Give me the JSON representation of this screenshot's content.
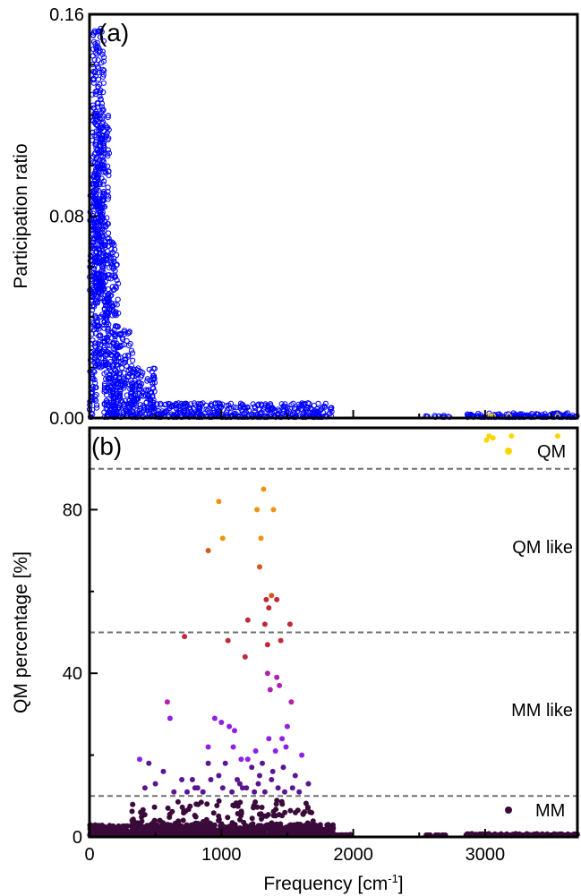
{
  "chart_data": [
    {
      "panel": "(a)",
      "type": "scatter",
      "marker": "open-circle",
      "ylabel": "Participation ratio",
      "xlim": [
        0,
        3700
      ],
      "ylim": [
        0,
        0.16
      ],
      "yticks": [
        "0.00",
        "0.08",
        "0.16"
      ],
      "series": [
        {
          "color": "#0000ff",
          "density": [
            {
              "x": [
                0,
                60
              ],
              "y": [
                0.0,
                0.09
              ],
              "n": 120
            },
            {
              "x": [
                20,
                110
              ],
              "y": [
                0.05,
                0.155
              ],
              "n": 320
            },
            {
              "x": [
                40,
                150
              ],
              "y": [
                0.02,
                0.12
              ],
              "n": 260
            },
            {
              "x": [
                110,
                220
              ],
              "y": [
                0.0,
                0.07
              ],
              "n": 220
            },
            {
              "x": [
                180,
                330
              ],
              "y": [
                0.0,
                0.035
              ],
              "n": 160
            },
            {
              "x": [
                300,
                500
              ],
              "y": [
                0.0,
                0.02
              ],
              "n": 140
            },
            {
              "x": [
                500,
                1850
              ],
              "y": [
                0.0,
                0.006
              ],
              "n": 380
            },
            {
              "x": [
                2550,
                2750
              ],
              "y": [
                0.0,
                0.001
              ],
              "n": 14
            },
            {
              "x": [
                2850,
                3700
              ],
              "y": [
                0.0,
                0.002
              ],
              "n": 150
            }
          ],
          "highlighted_qm_points": {
            "color": "#ffe000",
            "x": [
              3020,
              3040,
              3060,
              3180,
              3550
            ],
            "y": [
              0.0,
              0.0,
              0.0,
              0.0,
              0.0
            ]
          }
        }
      ]
    },
    {
      "panel": "(b)",
      "type": "scatter",
      "xlabel": "Frequency [cm-1]",
      "ylabel": "QM percentage [%]",
      "xlim": [
        0,
        3700
      ],
      "ylim": [
        0,
        100
      ],
      "xticks": [
        "0",
        "1000",
        "2000",
        "3000"
      ],
      "yticks": [
        "0",
        "40",
        "80"
      ],
      "thresholds": [
        10,
        50,
        90
      ],
      "regions": [
        "QM",
        "QM like",
        "MM like",
        "MM"
      ],
      "series": [
        {
          "name": "QM",
          "color": "#ffd500",
          "x": [
            3010,
            3030,
            3060,
            3200,
            3550
          ],
          "y": [
            97,
            98,
            97.5,
            98,
            98
          ]
        },
        {
          "name": "QM like",
          "color": "#e06a10",
          "x": [
            980,
            1010,
            900,
            1270,
            1320,
            1395,
            1300,
            1290,
            1330,
            1380,
            1360,
            1420,
            1350,
            1200,
            1050,
            1450,
            1520,
            1180,
            720,
            1340
          ],
          "y": [
            82,
            73,
            70,
            80,
            85,
            80,
            73,
            66,
            52,
            59,
            56,
            58,
            47,
            53,
            48,
            48,
            52,
            44,
            49,
            58
          ]
        },
        {
          "name": "MM like",
          "color": "#9a1fe0",
          "x": [
            590,
            610,
            950,
            1000,
            900,
            1060,
            1100,
            1150,
            1350,
            1370,
            1420,
            1440,
            1500,
            1530,
            1460,
            380,
            450,
            560,
            700,
            780,
            820,
            860,
            900,
            980,
            1030,
            1090,
            1120,
            1160,
            1200,
            1230,
            1260,
            1290,
            1310,
            1360,
            1390,
            1410,
            1470,
            1490,
            1560,
            1610,
            1660,
            420,
            500,
            640,
            740,
            800,
            860,
            920,
            1010,
            1080,
            1140,
            1190,
            1250,
            1280,
            1330,
            1380,
            1430,
            1480,
            1540,
            1590
          ],
          "y": [
            33,
            29,
            29,
            28,
            22,
            27,
            26,
            19,
            40,
            36,
            39,
            37,
            27,
            33,
            24,
            19,
            18,
            16,
            14,
            14,
            12,
            11,
            18,
            15,
            18,
            22,
            14,
            12,
            19,
            17,
            21,
            15,
            18,
            24,
            16,
            21,
            17,
            22,
            15,
            20,
            13,
            12,
            13,
            11,
            11,
            12,
            11,
            14,
            12,
            11,
            13,
            12,
            11,
            13,
            11,
            14,
            12,
            11,
            12,
            11
          ]
        },
        {
          "name": "MM",
          "color": "#3a0a3a",
          "density": [
            {
              "x": [
                0,
                1850
              ],
              "y": [
                0,
                3
              ],
              "n": 900
            },
            {
              "x": [
                300,
                1700
              ],
              "y": [
                3,
                9
              ],
              "n": 120
            },
            {
              "x": [
                1850,
                2000
              ],
              "y": [
                0,
                0.6
              ],
              "n": 30
            },
            {
              "x": [
                2550,
                2700
              ],
              "y": [
                0,
                0.5
              ],
              "n": 14
            },
            {
              "x": [
                2850,
                3700
              ],
              "y": [
                0,
                0.8
              ],
              "n": 220
            }
          ]
        }
      ]
    }
  ],
  "legend": {
    "qm": "QM",
    "qm_like": "QM like",
    "mm_like": "MM like",
    "mm": "MM"
  },
  "colors": {
    "qm": "#ffd500",
    "mm": "#3a0a3a",
    "panel_a_points": "#0000ff",
    "threshold_line": "#707070"
  }
}
